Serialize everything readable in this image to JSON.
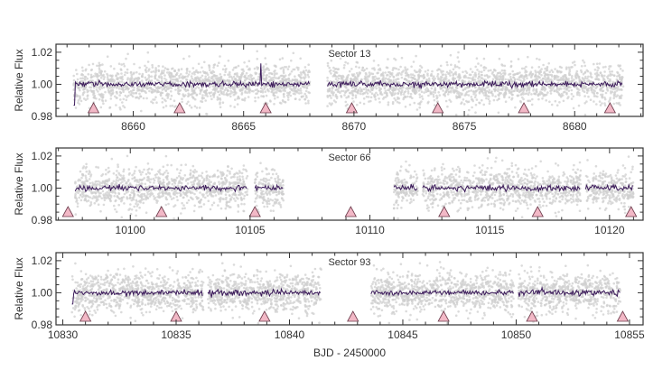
{
  "chart_data": [
    {
      "type": "scatter",
      "title": "Sector 13",
      "xlabel": "",
      "ylabel": "Relative Flux",
      "xlim": [
        8656.5,
        8683.1
      ],
      "ylim": [
        0.98,
        1.025
      ],
      "xticks": [
        8660,
        8665,
        8670,
        8675,
        8680
      ],
      "yticks": [
        0.98,
        1.0,
        1.02
      ],
      "ytick_labels": [
        "0.98",
        "1.00",
        "1.02"
      ],
      "data_segments": [
        [
          8657.3,
          8668.0
        ],
        [
          8668.8,
          8682.2
        ]
      ],
      "binned_level": 1.0,
      "raw_scatter_sigma": 0.006,
      "transit_markers": [
        8658.2,
        8662.1,
        8666.0,
        8669.9,
        8673.8,
        8677.7,
        8681.6
      ],
      "features": [
        {
          "x": 8657.35,
          "y": 0.987,
          "note": "ramp at segment start"
        },
        {
          "x": 8665.8,
          "y": 1.013,
          "note": "spike"
        }
      ]
    },
    {
      "type": "scatter",
      "title": "Sector 66",
      "xlabel": "",
      "ylabel": "Relative Flux",
      "xlim": [
        10096.9,
        10121.4
      ],
      "ylim": [
        0.98,
        1.025
      ],
      "xticks": [
        10100,
        10105,
        10110,
        10115,
        10120
      ],
      "yticks": [
        0.98,
        1.0,
        1.02
      ],
      "ytick_labels": [
        "0.98",
        "1.00",
        "1.02"
      ],
      "data_segments": [
        [
          10097.7,
          10104.9
        ],
        [
          10105.2,
          10106.4
        ],
        [
          10111.0,
          10112.0
        ],
        [
          10112.2,
          10118.8
        ],
        [
          10119.0,
          10121.0
        ]
      ],
      "binned_level": 1.0,
      "raw_scatter_sigma": 0.006,
      "transit_markers": [
        10097.4,
        10101.3,
        10105.2,
        10109.2,
        10113.1,
        10117.0,
        10120.9
      ],
      "features": []
    },
    {
      "type": "scatter",
      "title": "Sector 93",
      "xlabel": "BJD - 2450000",
      "ylabel": "Relative Flux",
      "xlim": [
        10829.7,
        10855.6
      ],
      "ylim": [
        0.98,
        1.025
      ],
      "xticks": [
        10830,
        10835,
        10840,
        10845,
        10850,
        10855
      ],
      "yticks": [
        0.98,
        1.0,
        1.02
      ],
      "ytick_labels": [
        "0.98",
        "1.00",
        "1.02"
      ],
      "data_segments": [
        [
          10830.4,
          10836.2
        ],
        [
          10836.4,
          10841.4
        ],
        [
          10843.6,
          10849.9
        ],
        [
          10850.1,
          10854.6
        ]
      ],
      "binned_level": 1.0,
      "raw_scatter_sigma": 0.006,
      "transit_markers": [
        10831.0,
        10835.0,
        10838.9,
        10842.8,
        10846.8,
        10850.7,
        10854.7
      ],
      "features": [
        {
          "x": 10830.4,
          "y": 0.993,
          "note": "ramp at segment start"
        }
      ]
    }
  ],
  "colors": {
    "raw_points": "#cfcfcf",
    "binned_line": "#3b1a5a",
    "transit_marker_fill": "#f2b8c6",
    "transit_marker_edge": "#6b3a4a",
    "axis": "#333333"
  },
  "labels": {
    "ylabel": "Relative Flux",
    "xlabel": "BJD - 2450000",
    "panel_titles": [
      "Sector 13",
      "Sector 66",
      "Sector 93"
    ]
  }
}
